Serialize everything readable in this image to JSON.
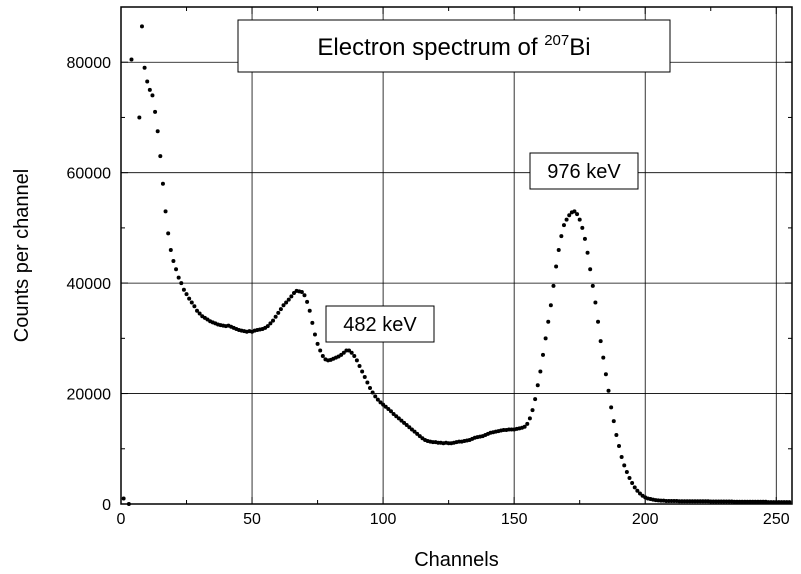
{
  "chart_data": {
    "type": "scatter",
    "title": {
      "text": "Electron spectrum of ",
      "isotope_mass": "207",
      "isotope_symbol": "Bi"
    },
    "xlabel": "Channels",
    "ylabel": "Counts per channel",
    "xlim": [
      0,
      256
    ],
    "ylim": [
      0,
      90000
    ],
    "x_ticks": [
      0,
      50,
      100,
      150,
      200,
      250
    ],
    "y_ticks": [
      0,
      20000,
      40000,
      60000,
      80000
    ],
    "x_tick_labels": [
      "0",
      "50",
      "100",
      "150",
      "200",
      "250"
    ],
    "y_tick_labels": [
      "0",
      "20000",
      "40000",
      "60000",
      "80000"
    ],
    "grid": true,
    "annotations": [
      {
        "text": "482 keV",
        "x": 85,
        "y": 32000
      },
      {
        "text": "976 keV",
        "x": 160,
        "y": 60000
      }
    ],
    "series": [
      {
        "color": "#000000",
        "points": [
          [
            1,
            1000
          ],
          [
            3,
            0
          ],
          [
            4,
            80500
          ],
          [
            7,
            70000
          ],
          [
            8,
            86500
          ],
          [
            9,
            79000
          ],
          [
            10,
            76500
          ],
          [
            11,
            75000
          ],
          [
            12,
            74000
          ],
          [
            13,
            71000
          ],
          [
            14,
            67500
          ],
          [
            15,
            63000
          ],
          [
            16,
            58000
          ],
          [
            17,
            53000
          ],
          [
            18,
            49000
          ],
          [
            19,
            46000
          ],
          [
            20,
            44000
          ],
          [
            21,
            42500
          ],
          [
            22,
            41000
          ],
          [
            23,
            40000
          ],
          [
            24,
            38800
          ],
          [
            25,
            38000
          ],
          [
            26,
            37200
          ],
          [
            27,
            36500
          ],
          [
            28,
            35800
          ],
          [
            29,
            35000
          ],
          [
            30,
            34500
          ],
          [
            31,
            34000
          ],
          [
            32,
            33700
          ],
          [
            33,
            33400
          ],
          [
            34,
            33100
          ],
          [
            35,
            32900
          ],
          [
            36,
            32700
          ],
          [
            37,
            32500
          ],
          [
            38,
            32400
          ],
          [
            39,
            32300
          ],
          [
            40,
            32200
          ],
          [
            41,
            32300
          ],
          [
            42,
            32100
          ],
          [
            43,
            31900
          ],
          [
            44,
            31700
          ],
          [
            45,
            31500
          ],
          [
            46,
            31400
          ],
          [
            47,
            31300
          ],
          [
            48,
            31200
          ],
          [
            49,
            31300
          ],
          [
            50,
            31200
          ],
          [
            51,
            31400
          ],
          [
            52,
            31500
          ],
          [
            53,
            31600
          ],
          [
            54,
            31700
          ],
          [
            55,
            31900
          ],
          [
            56,
            32200
          ],
          [
            57,
            32700
          ],
          [
            58,
            33200
          ],
          [
            59,
            33900
          ],
          [
            60,
            34600
          ],
          [
            61,
            35300
          ],
          [
            62,
            36000
          ],
          [
            63,
            36500
          ],
          [
            64,
            37000
          ],
          [
            65,
            37600
          ],
          [
            66,
            38200
          ],
          [
            67,
            38600
          ],
          [
            68,
            38500
          ],
          [
            69,
            38400
          ],
          [
            70,
            37800
          ],
          [
            71,
            36600
          ],
          [
            72,
            35000
          ],
          [
            73,
            32800
          ],
          [
            74,
            30700
          ],
          [
            75,
            29000
          ],
          [
            76,
            27800
          ],
          [
            77,
            26800
          ],
          [
            78,
            26200
          ],
          [
            79,
            26000
          ],
          [
            80,
            26100
          ],
          [
            81,
            26300
          ],
          [
            82,
            26500
          ],
          [
            83,
            26700
          ],
          [
            84,
            27000
          ],
          [
            85,
            27400
          ],
          [
            86,
            27800
          ],
          [
            87,
            27800
          ],
          [
            88,
            27400
          ],
          [
            89,
            26800
          ],
          [
            90,
            26000
          ],
          [
            91,
            25000
          ],
          [
            92,
            24000
          ],
          [
            93,
            23000
          ],
          [
            94,
            22000
          ],
          [
            95,
            21000
          ],
          [
            96,
            20200
          ],
          [
            97,
            19500
          ],
          [
            98,
            18900
          ],
          [
            99,
            18400
          ],
          [
            100,
            18000
          ],
          [
            101,
            17600
          ],
          [
            102,
            17200
          ],
          [
            103,
            16800
          ],
          [
            104,
            16300
          ],
          [
            105,
            15900
          ],
          [
            106,
            15500
          ],
          [
            107,
            15100
          ],
          [
            108,
            14700
          ],
          [
            109,
            14300
          ],
          [
            110,
            13900
          ],
          [
            111,
            13500
          ],
          [
            112,
            13100
          ],
          [
            113,
            12700
          ],
          [
            114,
            12300
          ],
          [
            115,
            11900
          ],
          [
            116,
            11600
          ],
          [
            117,
            11400
          ],
          [
            118,
            11300
          ],
          [
            119,
            11200
          ],
          [
            120,
            11200
          ],
          [
            121,
            11100
          ],
          [
            122,
            11100
          ],
          [
            123,
            11000
          ],
          [
            124,
            11100
          ],
          [
            125,
            11000
          ],
          [
            126,
            11000
          ],
          [
            127,
            11100
          ],
          [
            128,
            11200
          ],
          [
            129,
            11300
          ],
          [
            130,
            11300
          ],
          [
            131,
            11400
          ],
          [
            132,
            11500
          ],
          [
            133,
            11600
          ],
          [
            134,
            11800
          ],
          [
            135,
            12000
          ],
          [
            136,
            12100
          ],
          [
            137,
            12200
          ],
          [
            138,
            12300
          ],
          [
            139,
            12500
          ],
          [
            140,
            12700
          ],
          [
            141,
            12900
          ],
          [
            142,
            13000
          ],
          [
            143,
            13100
          ],
          [
            144,
            13200
          ],
          [
            145,
            13300
          ],
          [
            146,
            13400
          ],
          [
            147,
            13400
          ],
          [
            148,
            13500
          ],
          [
            149,
            13500
          ],
          [
            150,
            13500
          ],
          [
            151,
            13600
          ],
          [
            152,
            13700
          ],
          [
            153,
            13800
          ],
          [
            154,
            14000
          ],
          [
            155,
            14500
          ],
          [
            156,
            15500
          ],
          [
            157,
            17000
          ],
          [
            158,
            19000
          ],
          [
            159,
            21500
          ],
          [
            160,
            24000
          ],
          [
            161,
            27000
          ],
          [
            162,
            30000
          ],
          [
            163,
            33000
          ],
          [
            164,
            36000
          ],
          [
            165,
            39500
          ],
          [
            166,
            43000
          ],
          [
            167,
            46000
          ],
          [
            168,
            48500
          ],
          [
            169,
            50500
          ],
          [
            170,
            51500
          ],
          [
            171,
            52300
          ],
          [
            172,
            52800
          ],
          [
            173,
            53000
          ],
          [
            174,
            52500
          ],
          [
            175,
            51500
          ],
          [
            176,
            50000
          ],
          [
            177,
            48000
          ],
          [
            178,
            45500
          ],
          [
            179,
            42500
          ],
          [
            180,
            39500
          ],
          [
            181,
            36500
          ],
          [
            182,
            33000
          ],
          [
            183,
            29500
          ],
          [
            184,
            26500
          ],
          [
            185,
            23500
          ],
          [
            186,
            20500
          ],
          [
            187,
            17500
          ],
          [
            188,
            15000
          ],
          [
            189,
            12500
          ],
          [
            190,
            10500
          ],
          [
            191,
            8500
          ],
          [
            192,
            7000
          ],
          [
            193,
            5800
          ],
          [
            194,
            4700
          ],
          [
            195,
            3800
          ],
          [
            196,
            3000
          ],
          [
            197,
            2400
          ],
          [
            198,
            1900
          ],
          [
            199,
            1500
          ],
          [
            200,
            1200
          ],
          [
            201,
            1000
          ],
          [
            202,
            900
          ],
          [
            203,
            800
          ],
          [
            204,
            700
          ],
          [
            205,
            650
          ],
          [
            206,
            600
          ],
          [
            207,
            600
          ],
          [
            208,
            550
          ],
          [
            209,
            550
          ],
          [
            210,
            550
          ],
          [
            211,
            550
          ],
          [
            212,
            550
          ],
          [
            213,
            500
          ],
          [
            214,
            500
          ],
          [
            215,
            500
          ],
          [
            216,
            500
          ],
          [
            217,
            500
          ],
          [
            218,
            500
          ],
          [
            219,
            500
          ],
          [
            220,
            500
          ],
          [
            221,
            500
          ],
          [
            222,
            500
          ],
          [
            223,
            500
          ],
          [
            224,
            500
          ],
          [
            225,
            450
          ],
          [
            226,
            450
          ],
          [
            227,
            450
          ],
          [
            228,
            450
          ],
          [
            229,
            450
          ],
          [
            230,
            450
          ],
          [
            231,
            450
          ],
          [
            232,
            450
          ],
          [
            233,
            450
          ],
          [
            234,
            400
          ],
          [
            235,
            400
          ],
          [
            236,
            400
          ],
          [
            237,
            400
          ],
          [
            238,
            400
          ],
          [
            239,
            400
          ],
          [
            240,
            400
          ],
          [
            241,
            400
          ],
          [
            242,
            400
          ],
          [
            243,
            400
          ],
          [
            244,
            400
          ],
          [
            245,
            400
          ],
          [
            246,
            400
          ],
          [
            247,
            350
          ],
          [
            248,
            350
          ],
          [
            249,
            350
          ],
          [
            250,
            350
          ],
          [
            251,
            350
          ],
          [
            252,
            350
          ],
          [
            253,
            350
          ],
          [
            254,
            350
          ],
          [
            255,
            350
          ]
        ]
      }
    ]
  }
}
